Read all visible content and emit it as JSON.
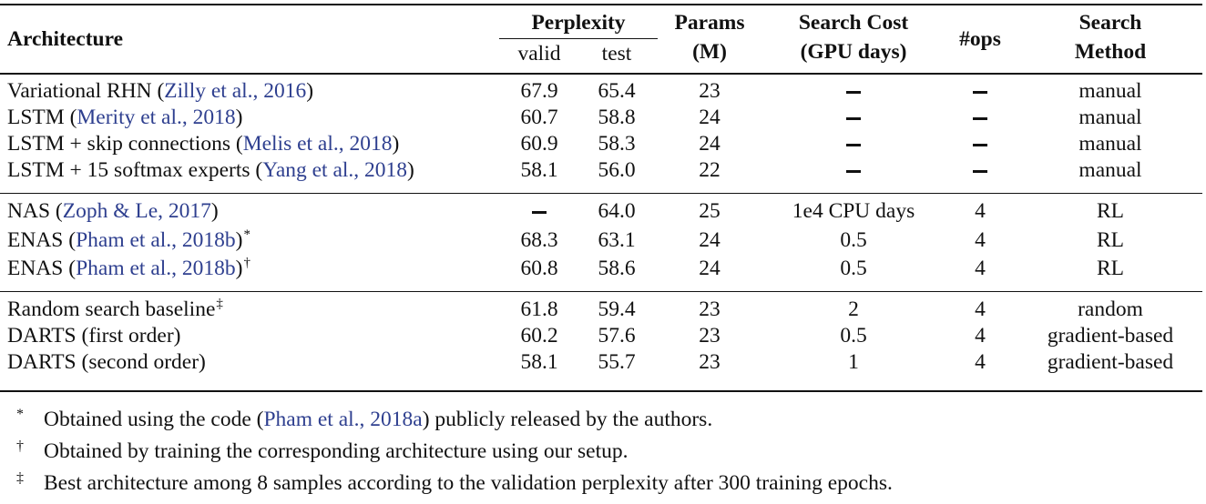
{
  "header": {
    "architecture": "Architecture",
    "perplexity": "Perplexity",
    "valid": "valid",
    "test": "test",
    "params_line1": "Params",
    "params_line2": "(M)",
    "cost_line1": "Search Cost",
    "cost_line2": "(GPU days)",
    "ops": "#ops",
    "method_line1": "Search",
    "method_line2": "Method"
  },
  "rows": [
    {
      "name": "Variational RHN",
      "cite": "Zilly et al., 2016",
      "mark": "",
      "valid": "67.9",
      "test": "65.4",
      "params": "23",
      "cost": "–",
      "ops": "–",
      "method": "manual"
    },
    {
      "name": "LSTM",
      "cite": "Merity et al., 2018",
      "mark": "",
      "valid": "60.7",
      "test": "58.8",
      "params": "24",
      "cost": "–",
      "ops": "–",
      "method": "manual"
    },
    {
      "name": "LSTM + skip connections",
      "cite": "Melis et al., 2018",
      "mark": "",
      "valid": "60.9",
      "test": "58.3",
      "params": "24",
      "cost": "–",
      "ops": "–",
      "method": "manual"
    },
    {
      "name": "LSTM + 15 softmax experts",
      "cite": "Yang et al., 2018",
      "mark": "",
      "valid": "58.1",
      "test": "56.0",
      "params": "22",
      "cost": "–",
      "ops": "–",
      "method": "manual"
    },
    {
      "name": "NAS",
      "cite": "Zoph & Le, 2017",
      "mark": "",
      "valid": "–",
      "test": "64.0",
      "params": "25",
      "cost": "1e4 CPU days",
      "ops": "4",
      "method": "RL"
    },
    {
      "name": "ENAS",
      "cite": "Pham et al., 2018b",
      "mark": "*",
      "valid": "68.3",
      "test": "63.1",
      "params": "24",
      "cost": "0.5",
      "ops": "4",
      "method": "RL"
    },
    {
      "name": "ENAS",
      "cite": "Pham et al., 2018b",
      "mark": "†",
      "valid": "60.8",
      "test": "58.6",
      "params": "24",
      "cost": "0.5",
      "ops": "4",
      "method": "RL"
    },
    {
      "name": "Random search baseline",
      "cite": "",
      "mark": "‡",
      "valid": "61.8",
      "test": "59.4",
      "params": "23",
      "cost": "2",
      "ops": "4",
      "method": "random"
    },
    {
      "name": "DARTS (first order)",
      "cite": "",
      "mark": "",
      "valid": "60.2",
      "test": "57.6",
      "params": "23",
      "cost": "0.5",
      "ops": "4",
      "method": "gradient-based"
    },
    {
      "name": "DARTS (second order)",
      "cite": "",
      "mark": "",
      "valid": "58.1",
      "test": "55.7",
      "params": "23",
      "cost": "1",
      "ops": "4",
      "method": "gradient-based"
    }
  ],
  "footnotes": [
    {
      "symbol": "*",
      "before": "Obtained using the code (",
      "cite": "Pham et al., 2018a",
      "after": ") publicly released by the authors."
    },
    {
      "symbol": "†",
      "before": "Obtained by training the corresponding architecture using our setup.",
      "cite": "",
      "after": ""
    },
    {
      "symbol": "‡",
      "before": "Best architecture among 8 samples according to the validation perplexity after 300 training epochs.",
      "cite": "",
      "after": ""
    }
  ]
}
